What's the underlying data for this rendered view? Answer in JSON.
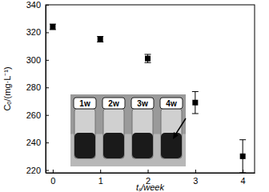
{
  "chart_data": {
    "type": "scatter",
    "x_label": "tₛ/week",
    "y_label": "Cₒ/(mg·L⁻¹)",
    "x": [
      0,
      1,
      2,
      3,
      4
    ],
    "values": [
      324,
      315,
      301,
      269,
      230
    ],
    "errors": [
      2,
      2,
      3,
      8,
      12
    ],
    "color": "#000000",
    "marker": "square",
    "xlim": [
      -0.15,
      4.25
    ],
    "xticks": [
      0,
      1,
      2,
      3,
      4
    ],
    "ylim": [
      218,
      340
    ],
    "yticks": [
      220,
      240,
      260,
      280,
      300,
      320,
      340
    ],
    "inset_labels": [
      "1w",
      "2w",
      "3w",
      "4w"
    ]
  }
}
